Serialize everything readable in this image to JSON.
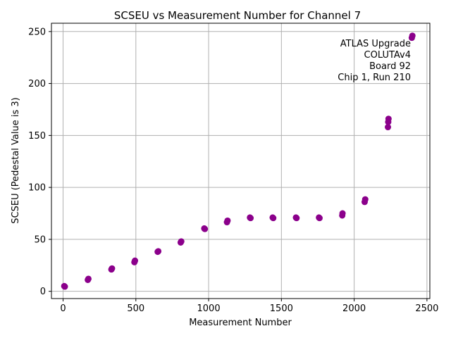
{
  "chart_data": {
    "type": "scatter",
    "title": "SCSEU vs Measurement Number for Channel 7",
    "xlabel": "Measurement Number",
    "ylabel": "SCSEU (Pedestal Value is 3)",
    "xlim": [
      -80,
      2520
    ],
    "ylim": [
      -7,
      258
    ],
    "xticks": [
      0,
      500,
      1000,
      1500,
      2000,
      2500
    ],
    "yticks": [
      0,
      50,
      100,
      150,
      200,
      250
    ],
    "grid": true,
    "marker_color": "#8b008b",
    "annotation": [
      "ATLAS Upgrade",
      "COLUTAv4",
      "Board 92",
      "Chip 1, Run 210"
    ],
    "points": [
      {
        "x": 8,
        "y": 5
      },
      {
        "x": 12,
        "y": 4.5
      },
      {
        "x": 170,
        "y": 11
      },
      {
        "x": 174,
        "y": 12
      },
      {
        "x": 332,
        "y": 21
      },
      {
        "x": 336,
        "y": 22
      },
      {
        "x": 490,
        "y": 28
      },
      {
        "x": 494,
        "y": 29.5
      },
      {
        "x": 650,
        "y": 38
      },
      {
        "x": 654,
        "y": 38.5
      },
      {
        "x": 808,
        "y": 47
      },
      {
        "x": 812,
        "y": 48
      },
      {
        "x": 970,
        "y": 60.5
      },
      {
        "x": 974,
        "y": 60
      },
      {
        "x": 1126,
        "y": 66.5
      },
      {
        "x": 1130,
        "y": 68
      },
      {
        "x": 1284,
        "y": 71
      },
      {
        "x": 1288,
        "y": 70.5
      },
      {
        "x": 1440,
        "y": 71
      },
      {
        "x": 1444,
        "y": 70.5
      },
      {
        "x": 1600,
        "y": 71
      },
      {
        "x": 1604,
        "y": 70.5
      },
      {
        "x": 1758,
        "y": 71
      },
      {
        "x": 1762,
        "y": 70.5
      },
      {
        "x": 1918,
        "y": 73
      },
      {
        "x": 1920,
        "y": 75
      },
      {
        "x": 2072,
        "y": 86
      },
      {
        "x": 2076,
        "y": 88.5
      },
      {
        "x": 2232,
        "y": 158
      },
      {
        "x": 2234,
        "y": 163
      },
      {
        "x": 2236,
        "y": 166
      },
      {
        "x": 2396,
        "y": 244
      },
      {
        "x": 2400,
        "y": 246
      }
    ]
  }
}
